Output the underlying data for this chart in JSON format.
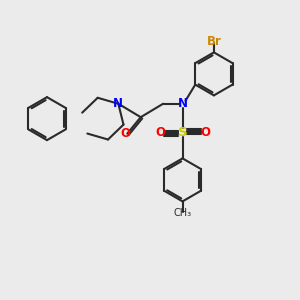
{
  "background_color": "#ebebeb",
  "bond_color": "#2a2a2a",
  "N_color": "#0000ff",
  "O_color": "#ff0000",
  "S_color": "#cccc00",
  "Br_color": "#cc8800",
  "line_width": 1.5,
  "font_size": 8.5,
  "fig_size": [
    3.0,
    3.0
  ],
  "dpi": 100,
  "xlim": [
    0,
    10
  ],
  "ylim": [
    0,
    10
  ]
}
